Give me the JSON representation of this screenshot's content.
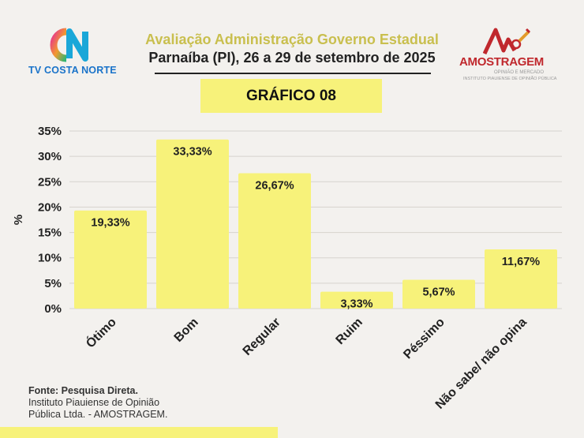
{
  "header": {
    "title": "Avaliação Administração Governo Estadual",
    "subtitle": "Parnaíba (PI), 26 a 29 de setembro de 2025",
    "badge": "GRÁFICO 08"
  },
  "logos": {
    "left_text": "TV COSTA NORTE",
    "right_name": "AMOSTRAGEM",
    "right_sub1": "OPINIÃO E MERCADO",
    "right_sub2": "INSTITUTO PIAUIENSE DE OPINIÃO PÚBLICA"
  },
  "source": {
    "line1": "Fonte: Pesquisa Direta.",
    "line2": "Instituto Piauiense de Opinião",
    "line3": "Pública Ltda. - AMOSTRAGEM."
  },
  "colors": {
    "bar": "#f7f27a",
    "badge": "#f7f27a",
    "title_accent": "#c9bf4e",
    "brand_red": "#c0282d",
    "brand_blue": "#1a73c9"
  },
  "chart_data": {
    "type": "bar",
    "categories": [
      "Ótimo",
      "Bom",
      "Regular",
      "Ruim",
      "Péssimo",
      "Não sabe/ não opina"
    ],
    "values": [
      19.33,
      33.33,
      26.67,
      3.33,
      5.67,
      11.67
    ],
    "data_labels": [
      "19,33%",
      "33,33%",
      "26,67%",
      "3,33%",
      "5,67%",
      "11,67%"
    ],
    "ylabel": "%",
    "ylim": [
      0,
      35
    ],
    "yticks": [
      0,
      5,
      10,
      15,
      20,
      25,
      30,
      35
    ],
    "ytick_labels": [
      "0%",
      "5%",
      "10%",
      "15%",
      "20%",
      "25%",
      "30%",
      "35%"
    ],
    "grid": true
  }
}
